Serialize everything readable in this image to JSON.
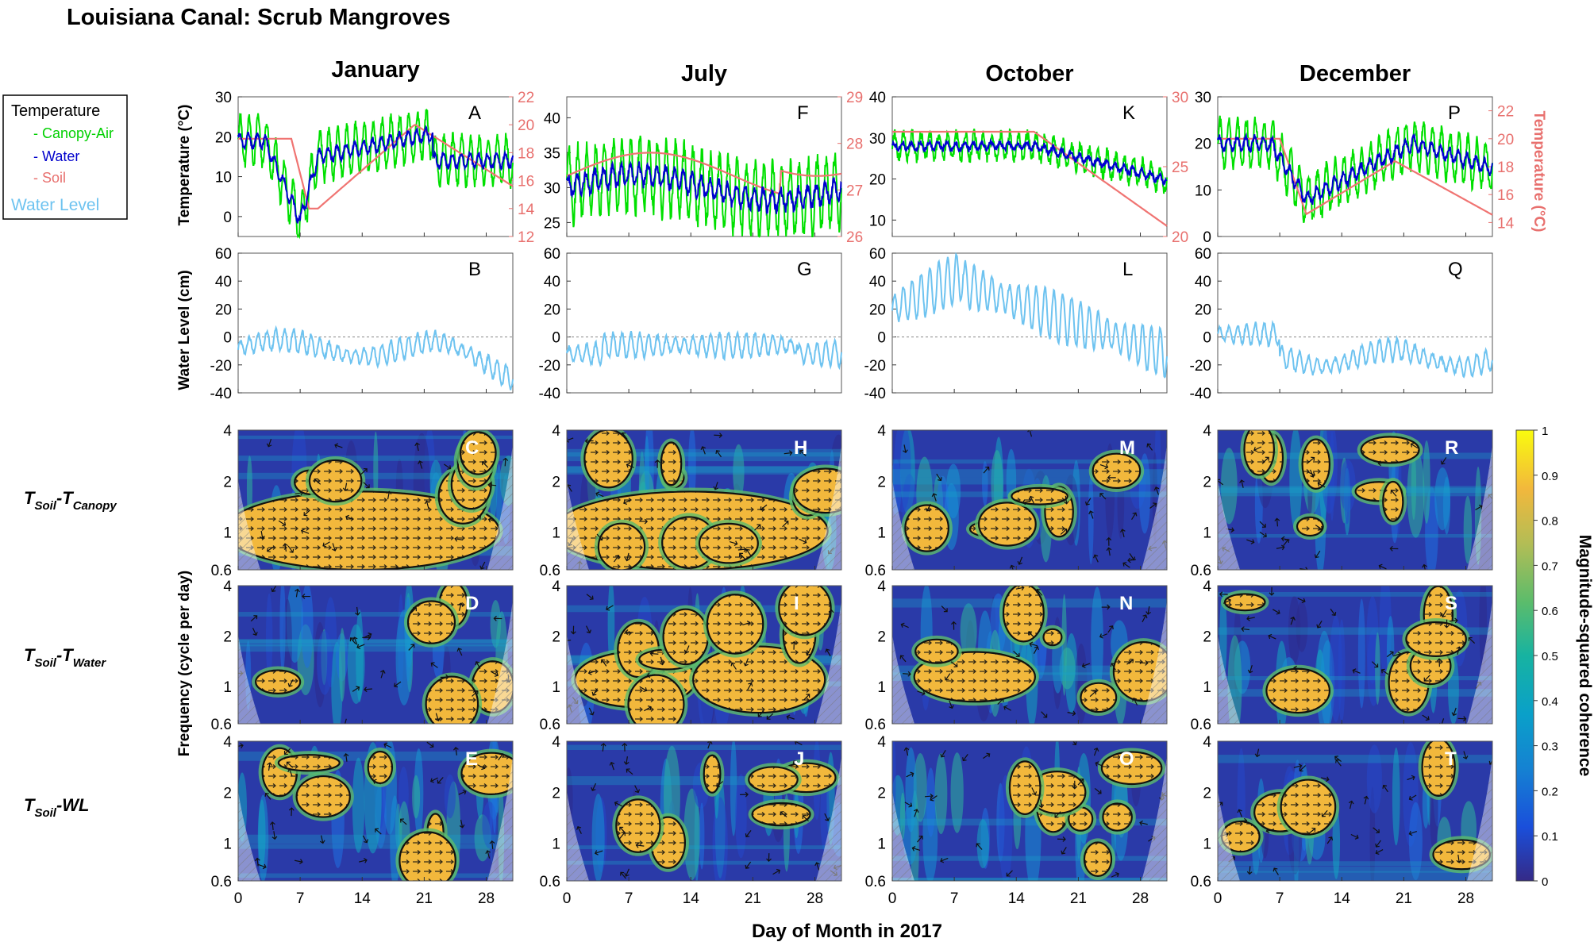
{
  "figure": {
    "title": "Louisiana Canal: Scrub Mangroves",
    "x_axis_label": "Day of Month in 2017"
  },
  "chart_data": {
    "type": "line",
    "months": [
      "January",
      "July",
      "October",
      "December"
    ],
    "legend": {
      "title": "Temperature",
      "entries": [
        {
          "label": "- Canopy-Air",
          "color": "#00e000"
        },
        {
          "label": "- Water",
          "color": "#0000cc"
        },
        {
          "label": "- Soil",
          "color": "#e8706e"
        },
        {
          "label": "Water Level",
          "color": "#6ec3f0"
        }
      ]
    },
    "x_ticks": [
      "0",
      "7",
      "14",
      "21",
      "28"
    ],
    "x_range": [
      0,
      31
    ],
    "temperature": {
      "ylabel_left": "Temperature (°C)",
      "ylabel_right": "Temperature (°C)",
      "panels": [
        {
          "letter": "A",
          "ylim": [
            -5,
            30
          ],
          "left_ticks": [
            "30",
            "20",
            "10",
            "0"
          ],
          "right_ylim": [
            12,
            22
          ],
          "right_ticks": [
            "22",
            "20",
            "18",
            "16",
            "14",
            "12"
          ]
        },
        {
          "letter": "F",
          "ylim": [
            23,
            43
          ],
          "left_ticks": [
            "40",
            "35",
            "30",
            "25"
          ],
          "right_ylim": [
            26,
            29
          ],
          "right_ticks": [
            "29",
            "28",
            "27",
            "26"
          ]
        },
        {
          "letter": "K",
          "ylim": [
            6,
            40
          ],
          "left_ticks": [
            "40",
            "30",
            "20",
            "10"
          ],
          "right_ylim": [
            20,
            30
          ],
          "right_ticks": [
            "30",
            "25",
            "20"
          ]
        },
        {
          "letter": "P",
          "ylim": [
            0,
            30
          ],
          "left_ticks": [
            "30",
            "20",
            "10",
            "0"
          ],
          "right_ylim": [
            13,
            23
          ],
          "right_ticks": [
            "22",
            "20",
            "18",
            "16",
            "14"
          ]
        }
      ]
    },
    "water_level": {
      "ylabel": "Water Level (cm)",
      "ylim": [
        -40,
        60
      ],
      "ticks": [
        "60",
        "40",
        "20",
        "0",
        "-20",
        "-40"
      ],
      "panels": [
        {
          "letter": "B"
        },
        {
          "letter": "G"
        },
        {
          "letter": "L"
        },
        {
          "letter": "Q"
        }
      ]
    },
    "coherence": {
      "type": "heatmap",
      "ylabel": "Frequency (cycle per day)",
      "y_ticks": [
        "4",
        "2",
        "1",
        "0.6"
      ],
      "rows": [
        {
          "main": "T",
          "sub1": "Soil",
          "sep": "-",
          "main2": "T",
          "sub2": "Canopy",
          "letters": [
            "C",
            "H",
            "M",
            "R"
          ]
        },
        {
          "main": "T",
          "sub1": "Soil",
          "sep": "-",
          "main2": "T",
          "sub2": "Water",
          "letters": [
            "D",
            "I",
            "N",
            "S"
          ]
        },
        {
          "main": "T",
          "sub1": "Soil",
          "sep": "-",
          "main2": "WL",
          "sub2": "",
          "letters": [
            "E",
            "J",
            "O",
            "T"
          ]
        }
      ],
      "colorbar": {
        "label": "Magnitude-squared coherence",
        "range": [
          0,
          1
        ],
        "ticks": [
          "1",
          "0.9",
          "0.8",
          "0.7",
          "0.6",
          "0.5",
          "0.4",
          "0.3",
          "0.2",
          "0.1",
          "0"
        ]
      }
    }
  }
}
